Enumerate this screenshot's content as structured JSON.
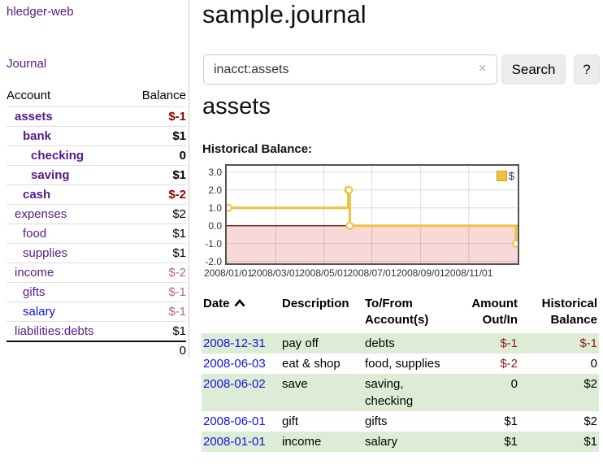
{
  "colors": {
    "link_purple": "#551a8b",
    "link_blue": "#1414dd",
    "negative_strong": "#990000",
    "negative_soft": "#b36b6b",
    "negative_table": "#8e1b1b",
    "row_stripe_green": "#ddedd5",
    "chart_line_gold": "#edc240",
    "chart_negative_fill": "#f8d8d8",
    "chart_zero_line": "#7a0000"
  },
  "app": {
    "brand": "hledger-web",
    "nav_journal": "Journal"
  },
  "sidebar": {
    "columns": {
      "account": "Account",
      "balance": "Balance"
    },
    "accounts": [
      {
        "name": "assets",
        "balance": "$-1",
        "indent": 1,
        "bold": true,
        "balance_tone": "neg-strong",
        "link_tone": "purple"
      },
      {
        "name": "bank",
        "balance": "$1",
        "indent": 2,
        "bold": true,
        "balance_tone": "plain",
        "link_tone": "purple"
      },
      {
        "name": "checking",
        "balance": "0",
        "indent": 3,
        "bold": true,
        "balance_tone": "plain",
        "link_tone": "purple"
      },
      {
        "name": "saving",
        "balance": "$1",
        "indent": 3,
        "bold": true,
        "balance_tone": "plain",
        "link_tone": "purple"
      },
      {
        "name": "cash",
        "balance": "$-2",
        "indent": 2,
        "bold": true,
        "balance_tone": "neg-strong",
        "link_tone": "purple"
      },
      {
        "name": "expenses",
        "balance": "$2",
        "indent": 1,
        "bold": false,
        "balance_tone": "plain",
        "link_tone": "purple"
      },
      {
        "name": "food",
        "balance": "$1",
        "indent": 2,
        "bold": false,
        "balance_tone": "plain",
        "link_tone": "purple"
      },
      {
        "name": "supplies",
        "balance": "$1",
        "indent": 2,
        "bold": false,
        "balance_tone": "plain",
        "link_tone": "purple"
      },
      {
        "name": "income",
        "balance": "$-2",
        "indent": 1,
        "bold": false,
        "balance_tone": "neg-soft",
        "link_tone": "purple"
      },
      {
        "name": "gifts",
        "balance": "$-1",
        "indent": 2,
        "bold": false,
        "balance_tone": "neg-soft",
        "link_tone": "purple"
      },
      {
        "name": "salary",
        "balance": "$-1",
        "indent": 2,
        "bold": false,
        "balance_tone": "neg-soft",
        "link_tone": "blue"
      },
      {
        "name": "liabilities:debts",
        "balance": "$1",
        "indent": 1,
        "bold": false,
        "balance_tone": "plain",
        "link_tone": "purple"
      }
    ],
    "total": "0"
  },
  "main": {
    "title": "sample.journal",
    "search": {
      "value": "inacct:assets",
      "clear_icon": "×",
      "search_button": "Search",
      "help_button": "?"
    },
    "account_title": "assets",
    "chart_label": "Historical Balance:"
  },
  "chart_data": {
    "type": "line",
    "step": true,
    "title": "Historical Balance",
    "series": [
      {
        "name": "$",
        "color": "#edc240",
        "points": [
          [
            "2008-01-01",
            1
          ],
          [
            "2008-06-01",
            2
          ],
          [
            "2008-06-02",
            2
          ],
          [
            "2008-06-03",
            0
          ],
          [
            "2008-12-31",
            -1
          ]
        ]
      }
    ],
    "x_range": [
      "2008-01-01",
      "2008-12-31"
    ],
    "x_ticks": [
      "2008/01/01",
      "2008/03/01",
      "2008/05/01",
      "2008/07/01",
      "2008/09/01",
      "2008/11/01"
    ],
    "y_ticks": [
      "3.0",
      "2.0",
      "1.0",
      "0.0",
      "-1.0",
      "-2.0"
    ],
    "ylim": [
      -2.1,
      3.35
    ],
    "grid": true,
    "legend": {
      "label": "$",
      "position": "top-right"
    }
  },
  "register": {
    "headers": [
      "Date",
      "Description",
      "To/From Account(s)",
      "Amount Out/In",
      "Historical Balance"
    ],
    "sort_column": "Date",
    "sort_direction": "ascending",
    "rows": [
      {
        "date": "2008-12-31",
        "description": "pay off",
        "accounts": "debts",
        "amount": "$-1",
        "balance": "$-1",
        "amount_negative": true,
        "balance_negative": true
      },
      {
        "date": "2008-06-03",
        "description": "eat & shop",
        "accounts": "food, supplies",
        "amount": "$-2",
        "balance": "0",
        "amount_negative": true,
        "balance_negative": false
      },
      {
        "date": "2008-06-02",
        "description": "save",
        "accounts": "saving, checking",
        "amount": "0",
        "balance": "$2",
        "amount_negative": false,
        "balance_negative": false
      },
      {
        "date": "2008-06-01",
        "description": "gift",
        "accounts": "gifts",
        "amount": "$1",
        "balance": "$2",
        "amount_negative": false,
        "balance_negative": false
      },
      {
        "date": "2008-01-01",
        "description": "income",
        "accounts": "salary",
        "amount": "$1",
        "balance": "$1",
        "amount_negative": false,
        "balance_negative": false
      }
    ]
  }
}
